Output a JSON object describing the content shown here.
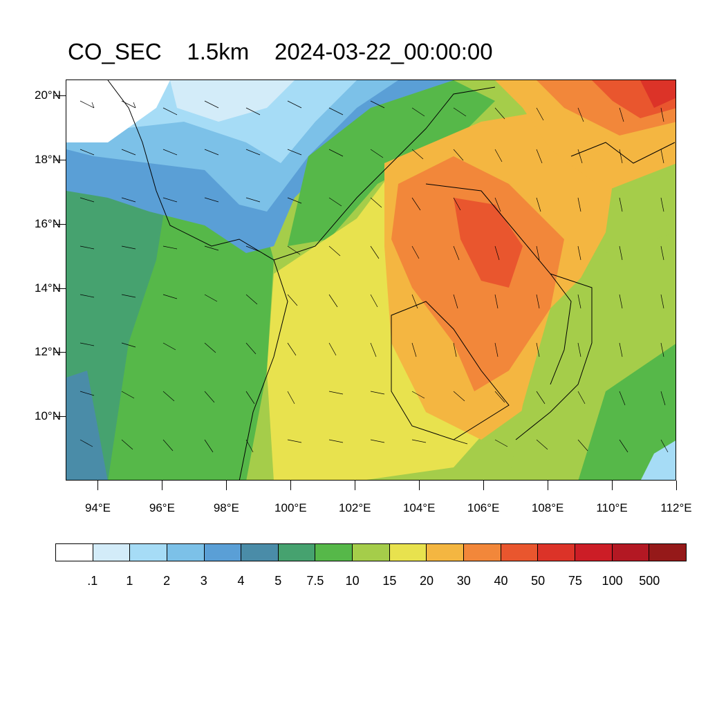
{
  "title": {
    "variable": "CO_SEC",
    "level": "1.5km",
    "time": "2024-03-22_00:00:00"
  },
  "map": {
    "projection": "lat-lon",
    "lon_range": [
      93,
      112
    ],
    "lat_range": [
      8,
      20.5
    ],
    "lat_ticks": [
      {
        "value": 20,
        "label": "20°N"
      },
      {
        "value": 18,
        "label": "18°N"
      },
      {
        "value": 16,
        "label": "16°N"
      },
      {
        "value": 14,
        "label": "14°N"
      },
      {
        "value": 12,
        "label": "12°N"
      },
      {
        "value": 10,
        "label": "10°N"
      }
    ],
    "lon_ticks": [
      {
        "value": 94,
        "label": "94°E"
      },
      {
        "value": 96,
        "label": "96°E"
      },
      {
        "value": 98,
        "label": "98°E"
      },
      {
        "value": 100,
        "label": "100°E"
      },
      {
        "value": 102,
        "label": "102°E"
      },
      {
        "value": 104,
        "label": "104°E"
      },
      {
        "value": 106,
        "label": "106°E"
      },
      {
        "value": 108,
        "label": "108°E"
      },
      {
        "value": 110,
        "label": "110°E"
      },
      {
        "value": 112,
        "label": "112°E"
      }
    ],
    "overlay": "wind-barbs",
    "boundaries": "coastlines-and-country-borders"
  },
  "colorbar": {
    "colors": [
      "#ffffff",
      "#d3ecf9",
      "#a6dcf6",
      "#7cc1e8",
      "#5a9fd6",
      "#4a8ca8",
      "#46a26f",
      "#56b849",
      "#a5cd4a",
      "#e8e24e",
      "#f4b641",
      "#f2873a",
      "#e9562e",
      "#dc3328",
      "#cc1d26",
      "#b31823",
      "#951919"
    ],
    "labels": [
      ".1",
      "1",
      "2",
      "3",
      "4",
      "5",
      "7.5",
      "10",
      "15",
      "20",
      "30",
      "40",
      "50",
      "75",
      "100",
      "500"
    ]
  }
}
